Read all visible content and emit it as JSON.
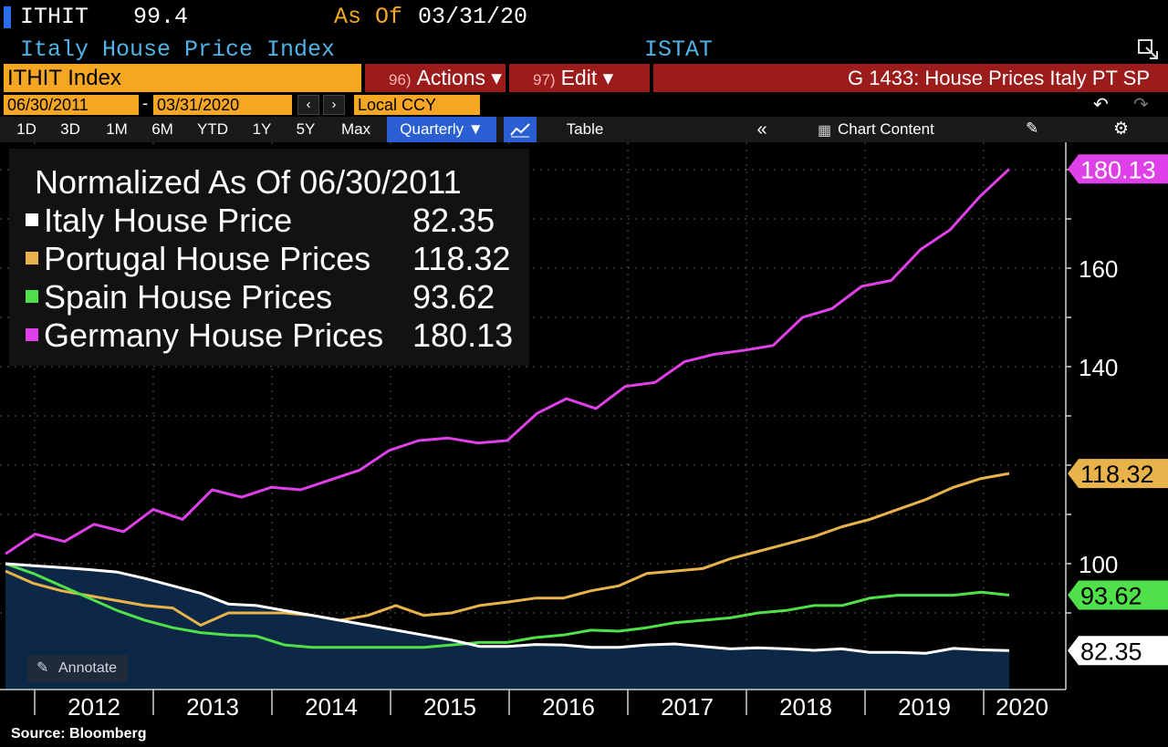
{
  "header": {
    "ticker": "ITHIT",
    "last_value": "99.4",
    "as_of_label": "As Of",
    "as_of_date": "03/31/20",
    "index_name": "Italy House Price Index",
    "source_label": "ISTAT"
  },
  "toolbar": {
    "ticker_field": "ITHIT Index",
    "actions_num": "96)",
    "actions_label": "Actions ▾",
    "edit_num": "97)",
    "edit_label": "Edit ▾",
    "chart_title": "G 1433: House Prices Italy PT SP",
    "start_date": "06/30/2011",
    "end_date": "03/31/2020",
    "currency": "Local CCY",
    "periods": [
      "1D",
      "3D",
      "1M",
      "6M",
      "YTD",
      "1Y",
      "5Y",
      "Max"
    ],
    "frequency": "Quarterly ▼",
    "table_label": "Table",
    "chart_content_label": "Chart Content"
  },
  "annotate_label": "Annotate",
  "source_note": "Source: Bloomberg",
  "colors": {
    "italy": "#ffffff",
    "portugal": "#e8b34a",
    "spain": "#4fe04a",
    "germany": "#e040e8",
    "area": "#0d2747",
    "accent_orange": "#f5a623",
    "toolbar_red": "#9c1c1c"
  },
  "chart_data": {
    "type": "line",
    "title": "Normalized As Of 06/30/2011",
    "xlabel": "",
    "ylabel": "",
    "ylim": [
      78,
      185
    ],
    "x_ticks": [
      "2012",
      "2013",
      "2014",
      "2015",
      "2016",
      "2017",
      "2018",
      "2019",
      "2020"
    ],
    "y_ticks": [
      "160",
      "140",
      "100"
    ],
    "grid": true,
    "legend": "top-left",
    "series": [
      {
        "name": "Italy House Price",
        "last": "82.35",
        "color": "#ffffff",
        "values": [
          100,
          99.6,
          99.2,
          98.8,
          98.3,
          97,
          95.5,
          94,
          91.8,
          91.5,
          90.5,
          89.5,
          88.5,
          87.5,
          86.5,
          85.5,
          84.5,
          83.2,
          83.2,
          83.6,
          83.5,
          83,
          83,
          83.5,
          83.7,
          83.2,
          82.7,
          82.9,
          82.7,
          82.4,
          82.7,
          82,
          82,
          81.8,
          82.8,
          82.5,
          82.35
        ]
      },
      {
        "name": "Portugal House Prices",
        "last": "118.32",
        "color": "#e8b34a",
        "values": [
          98.5,
          96,
          94.5,
          93.5,
          92.5,
          91.5,
          91,
          87.5,
          90,
          90,
          90,
          89.5,
          88.5,
          89.5,
          91.5,
          89.5,
          90,
          91.5,
          92.2,
          93,
          93,
          94.5,
          95.5,
          98,
          98.5,
          99,
          101,
          102.5,
          104,
          105.5,
          107.5,
          109,
          111,
          113,
          115.5,
          117.3,
          118.32
        ]
      },
      {
        "name": "Spain House Prices",
        "last": "93.62",
        "color": "#4fe04a",
        "values": [
          100,
          98,
          95.5,
          93,
          90.5,
          88.5,
          87,
          86,
          85.5,
          85.3,
          83.5,
          83,
          83,
          83,
          83,
          83,
          83.5,
          84,
          84,
          85,
          85.5,
          86.5,
          86.3,
          87,
          88,
          88.5,
          89,
          90,
          90.5,
          91.5,
          91.5,
          93,
          93.6,
          93.6,
          93.6,
          94.2,
          93.62
        ]
      },
      {
        "name": "Germany House Prices",
        "last": "180.13",
        "color": "#e040e8",
        "values": [
          102,
          106,
          104.5,
          108,
          106.5,
          111,
          109,
          115,
          113.5,
          115.5,
          115,
          117,
          119,
          123,
          125,
          125.5,
          124.5,
          125,
          130.5,
          133.5,
          131.5,
          136,
          136.8,
          141,
          142.5,
          143.3,
          144.3,
          150,
          151.8,
          156.3,
          157.5,
          163.8,
          167.8,
          174.5,
          180.13
        ]
      }
    ]
  }
}
